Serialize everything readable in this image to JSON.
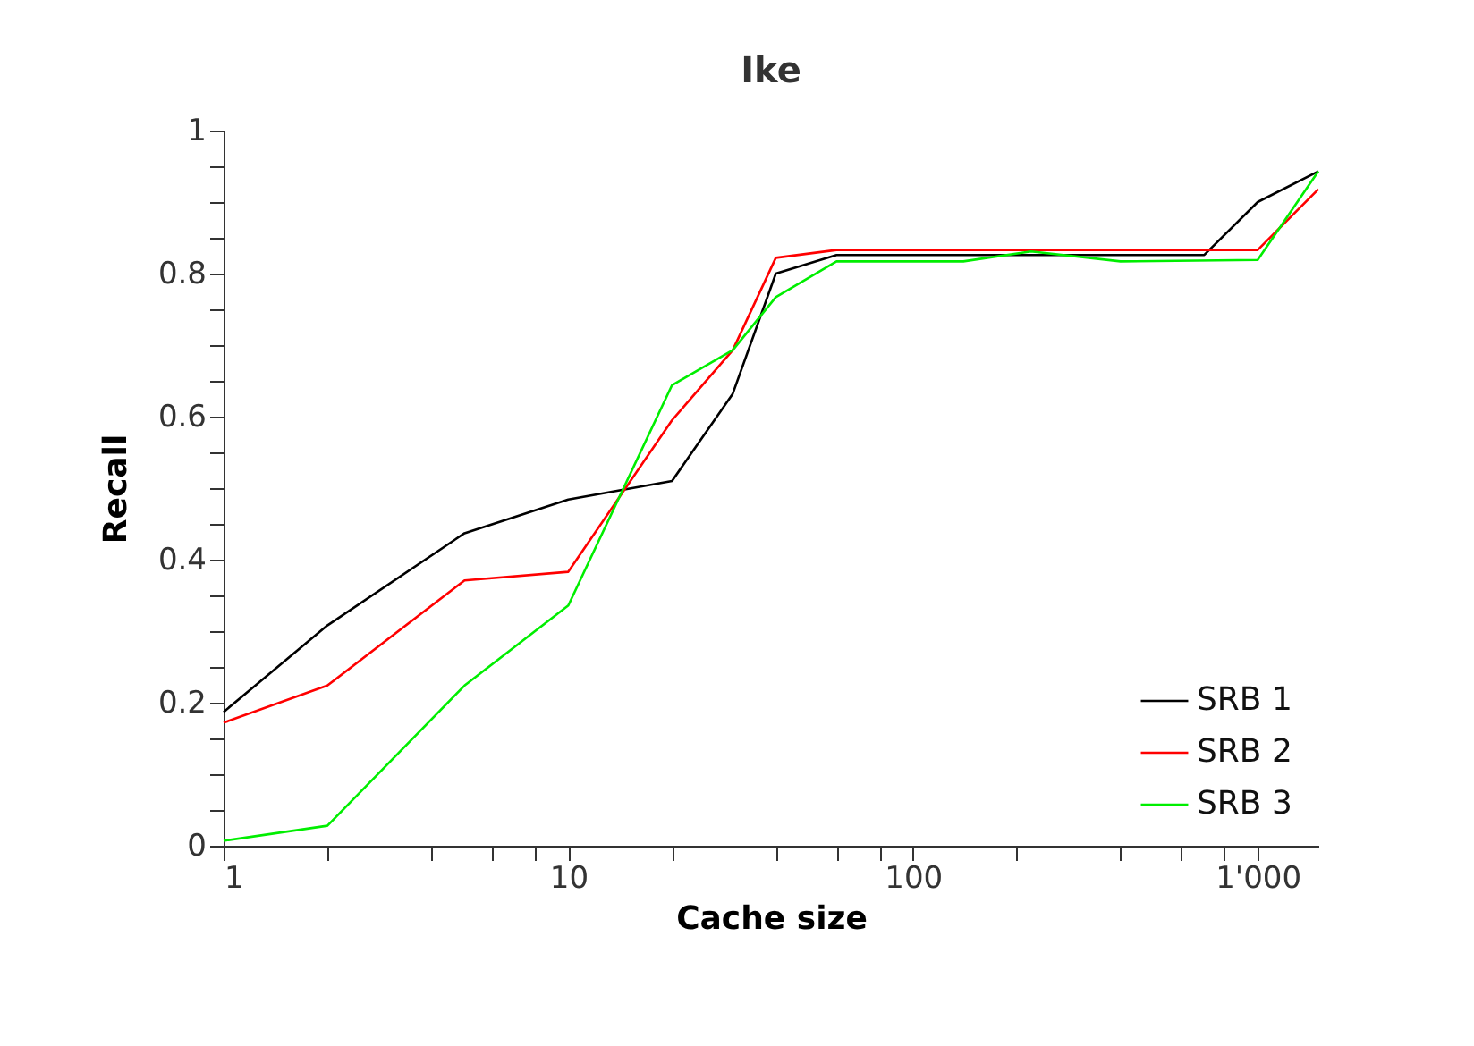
{
  "chart_data": {
    "type": "line",
    "title": "Ike",
    "xlabel": "Cache size",
    "ylabel": "Recall",
    "log": "x",
    "xlim": [
      1,
      1500
    ],
    "ylim": [
      0,
      1
    ],
    "xticks": [
      1,
      {
        "value": 2,
        "label": null
      },
      {
        "value": 4,
        "label": null
      },
      {
        "value": 6,
        "label": null
      },
      {
        "value": 8,
        "label": null
      },
      10,
      {
        "value": 20,
        "label": null
      },
      {
        "value": 40,
        "label": null
      },
      {
        "value": 60,
        "label": null
      },
      {
        "value": 80,
        "label": null
      },
      100,
      {
        "value": 200,
        "label": null
      },
      {
        "value": 400,
        "label": null
      },
      {
        "value": 600,
        "label": null
      },
      {
        "value": 800,
        "label": null
      },
      {
        "value": 1000,
        "label": "1'000"
      }
    ],
    "yticks": [
      0,
      {
        "value": 0.05,
        "label": null
      },
      {
        "value": 0.1,
        "label": null
      },
      {
        "value": 0.15,
        "label": null
      },
      0.2,
      {
        "value": 0.25,
        "label": null
      },
      {
        "value": 0.3,
        "label": null
      },
      {
        "value": 0.35,
        "label": null
      },
      0.4,
      {
        "value": 0.45,
        "label": null
      },
      {
        "value": 0.5,
        "label": null
      },
      {
        "value": 0.55,
        "label": null
      },
      0.6,
      {
        "value": 0.65,
        "label": null
      },
      {
        "value": 0.7,
        "label": null
      },
      {
        "value": 0.75,
        "label": null
      },
      0.8,
      {
        "value": 0.85,
        "label": null
      },
      {
        "value": 0.9,
        "label": null
      },
      {
        "value": 0.95,
        "label": null
      },
      1
    ],
    "grid": false,
    "legend": "bottom right",
    "marker": "none",
    "line_style": "solid",
    "series": [
      {
        "name": "SRB 1",
        "color": "#000000",
        "x": [
          1,
          2,
          5,
          10,
          20,
          30,
          40,
          60,
          700,
          1000,
          1500
        ],
        "values": [
          0.187,
          0.308,
          0.437,
          0.484,
          0.51,
          0.632,
          0.8,
          0.826,
          0.826,
          0.9,
          0.943
        ]
      },
      {
        "name": "SRB 2",
        "color": "#ff0000",
        "x": [
          1,
          2,
          5,
          10,
          20,
          30,
          40,
          60,
          1000,
          1500
        ],
        "values": [
          0.172,
          0.224,
          0.371,
          0.383,
          0.595,
          0.693,
          0.822,
          0.833,
          0.833,
          0.918
        ]
      },
      {
        "name": "SRB 3",
        "color": "#00ee00",
        "x": [
          1,
          2,
          5,
          10,
          20,
          30,
          40,
          60,
          140,
          220,
          400,
          1000,
          1500
        ],
        "values": [
          0.007,
          0.028,
          0.224,
          0.336,
          0.644,
          0.693,
          0.767,
          0.817,
          0.817,
          0.831,
          0.817,
          0.819,
          0.943
        ]
      }
    ]
  }
}
